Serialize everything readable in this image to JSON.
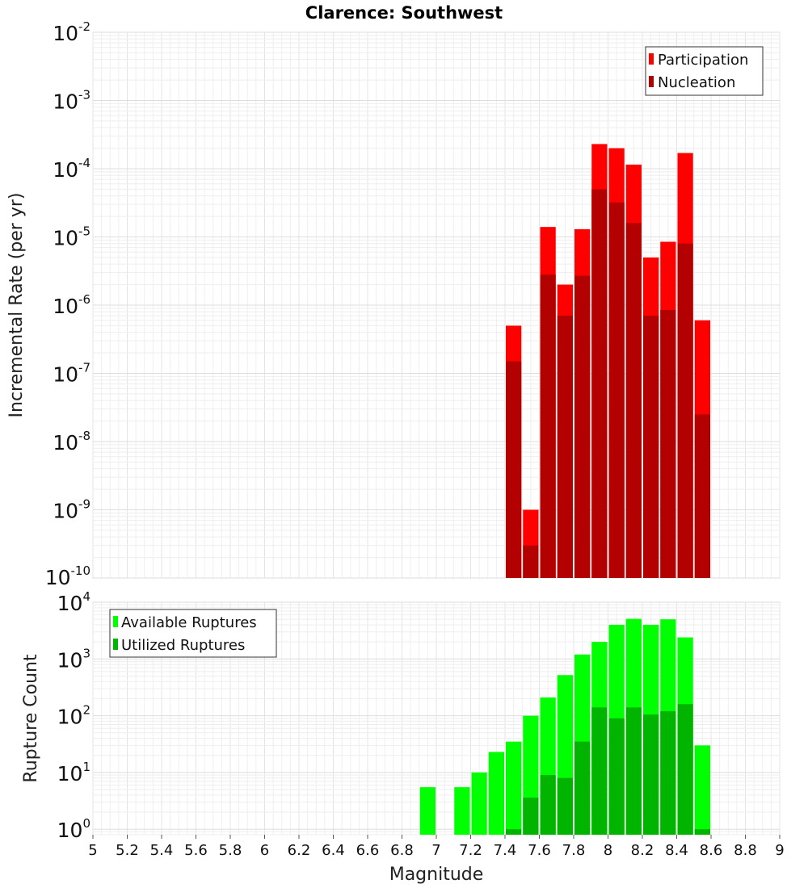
{
  "chart_data": [
    {
      "type": "bar",
      "title": "Clarence: Southwest",
      "ylabel": "Incremental Rate (per yr)",
      "xlabel": "",
      "yscale": "log",
      "ylim": [
        1e-10,
        0.01
      ],
      "xlim": [
        5,
        9
      ],
      "grid": true,
      "legend_position": "top-right",
      "x": [
        7.45,
        7.55,
        7.65,
        7.75,
        7.85,
        7.95,
        8.05,
        8.15,
        8.25,
        8.35,
        8.45,
        8.55
      ],
      "series": [
        {
          "name": "Participation",
          "color": "#ff0000",
          "values": [
            5e-07,
            1e-09,
            1.4e-05,
            2e-06,
            1.3e-05,
            0.00023,
            0.0002,
            0.000115,
            5e-06,
            8.5e-06,
            0.00017,
            6e-07
          ]
        },
        {
          "name": "Nucleation",
          "color": "#b30000",
          "values": [
            1.5e-07,
            3e-10,
            2.8e-06,
            7e-07,
            2.7e-06,
            5e-05,
            3.2e-05,
            1.6e-05,
            7e-07,
            8.5e-07,
            8e-06,
            2.5e-08
          ]
        }
      ]
    },
    {
      "type": "bar",
      "title": "",
      "ylabel": "Rupture Count",
      "xlabel": "Magnitude",
      "yscale": "log",
      "ylim": [
        0.8,
        10000
      ],
      "xlim": [
        5,
        9
      ],
      "grid": true,
      "legend_position": "top-left",
      "xticks": [
        "5",
        "5.2",
        "5.4",
        "5.6",
        "5.8",
        "6",
        "6.2",
        "6.4",
        "6.6",
        "6.8",
        "7",
        "7.2",
        "7.4",
        "7.6",
        "7.8",
        "8",
        "8.2",
        "8.4",
        "8.6",
        "8.8",
        "9"
      ],
      "x": [
        6.95,
        7.15,
        7.25,
        7.35,
        7.45,
        7.55,
        7.65,
        7.75,
        7.85,
        7.95,
        8.05,
        8.15,
        8.25,
        8.35,
        8.45,
        8.55
      ],
      "series": [
        {
          "name": "Available Ruptures",
          "color": "#00ff00",
          "values": [
            5.5,
            5.5,
            10,
            23,
            35,
            100,
            210,
            520,
            1200,
            2000,
            4000,
            5100,
            4000,
            5000,
            2400,
            30
          ]
        },
        {
          "name": "Utilized Ruptures",
          "color": "#00b400",
          "values": [
            0,
            0,
            0,
            0,
            1,
            3.6,
            9,
            8,
            35,
            140,
            90,
            140,
            105,
            120,
            160,
            1
          ]
        }
      ]
    }
  ]
}
